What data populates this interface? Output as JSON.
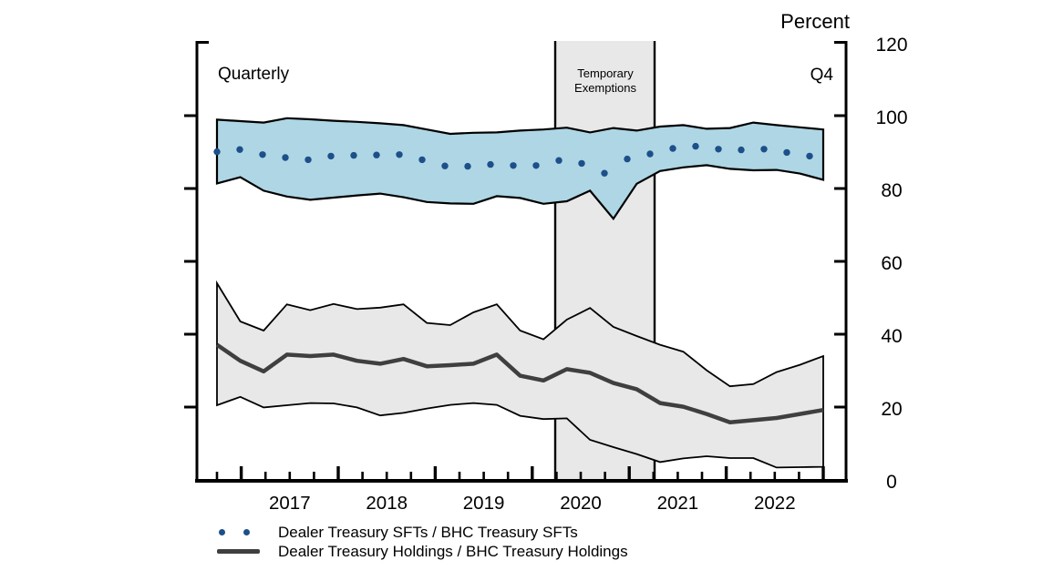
{
  "labels": {
    "unit_title": "Percent",
    "frequency": "Quarterly",
    "last_observation": "Q4",
    "exemption_line1": "Temporary",
    "exemption_line2": "Exemptions"
  },
  "legend": {
    "items": [
      {
        "label": "Dealer Treasury SFTs / BHC Treasury SFTs",
        "marker": "dotted",
        "color": "#1d4f8a"
      },
      {
        "label": "Dealer Treasury Holdings / BHC Treasury Holdings",
        "marker": "line",
        "color": "#3f3f3f"
      }
    ]
  },
  "colors": {
    "sft_band_fill": "#aed6e4",
    "holdings_band_fill": "#e8e8e8",
    "exemption_band_fill": "#e8e8e8",
    "dot_color": "#1d4f8a",
    "holdings_line_color": "#3f3f3f",
    "outline": "#000000"
  },
  "chart_data": {
    "type": "line",
    "title": "Percent",
    "x_unit": "quarter",
    "x_start": "2016 Q2",
    "x_end": "2022 Q4",
    "n_points": 27,
    "year_labels": [
      "2017",
      "2018",
      "2019",
      "2020",
      "2021",
      "2022"
    ],
    "ylim": [
      0,
      120
    ],
    "y_ticks": [
      120,
      100,
      80,
      60,
      40,
      20,
      0
    ],
    "grid": false,
    "legend_position": "bottom",
    "series": [
      {
        "name": "Dealer Treasury SFTs / BHC Treasury SFTs",
        "style": "dotted",
        "color": "#1d4f8a",
        "values": [
          90.1,
          90.7,
          89.3,
          88.5,
          87.9,
          88.9,
          89.1,
          89.2,
          89.3,
          87.9,
          86.2,
          86.1,
          86.6,
          86.3,
          86.3,
          87.7,
          86.9,
          84.2,
          88.1,
          89.5,
          91.0,
          91.6,
          90.8,
          90.6,
          90.8,
          89.9,
          88.9
        ]
      },
      {
        "name": "Dealer Treasury Holdings / BHC Treasury Holdings",
        "style": "solid",
        "color": "#3f3f3f",
        "values": [
          37.1,
          32.7,
          29.8,
          34.4,
          34.0,
          34.4,
          32.7,
          31.9,
          33.2,
          31.2,
          31.5,
          31.9,
          34.4,
          28.6,
          27.3,
          30.4,
          29.4,
          26.6,
          24.9,
          21.1,
          20.1,
          18.1,
          15.8,
          16.4,
          17.0,
          18.1,
          19.2
        ]
      }
    ],
    "bands": [
      {
        "name": "SFT ratio range band",
        "fill": "#aed6e4",
        "upper": [
          98.9,
          98.5,
          98.1,
          99.3,
          99.0,
          98.6,
          98.3,
          97.9,
          97.4,
          96.2,
          95.0,
          95.3,
          95.4,
          95.9,
          96.2,
          96.7,
          95.4,
          96.6,
          95.9,
          97.0,
          97.4,
          96.4,
          96.6,
          98.1,
          97.4,
          96.8,
          96.2
        ],
        "lower": [
          81.4,
          83.1,
          79.4,
          77.8,
          76.9,
          77.5,
          78.1,
          78.6,
          77.6,
          76.3,
          75.9,
          75.8,
          77.9,
          77.4,
          75.8,
          76.5,
          79.4,
          71.7,
          81.3,
          84.8,
          85.8,
          86.4,
          85.4,
          85.0,
          85.1,
          84.1,
          82.4
        ]
      },
      {
        "name": "Holdings ratio range band",
        "fill": "#e8e8e8",
        "upper": [
          54.0,
          43.5,
          41.0,
          48.2,
          46.6,
          48.3,
          46.9,
          47.3,
          48.2,
          43.1,
          42.5,
          46.0,
          48.2,
          41.0,
          38.6,
          44.0,
          47.2,
          42.0,
          39.5,
          37.1,
          35.2,
          30.1,
          25.7,
          26.3,
          29.6,
          31.6,
          34.0
        ],
        "lower": [
          20.5,
          22.8,
          19.9,
          20.5,
          21.1,
          21.0,
          19.9,
          17.7,
          18.4,
          19.6,
          20.6,
          21.1,
          20.6,
          17.6,
          16.7,
          16.9,
          11.0,
          9.0,
          7.1,
          4.9,
          5.9,
          6.5,
          6.0,
          6.0,
          3.4,
          3.5,
          3.6
        ]
      }
    ],
    "annotation_band": {
      "label": "Temporary Exemptions",
      "x_from": "2020 Q2",
      "x_to": "2021 Q1"
    }
  }
}
